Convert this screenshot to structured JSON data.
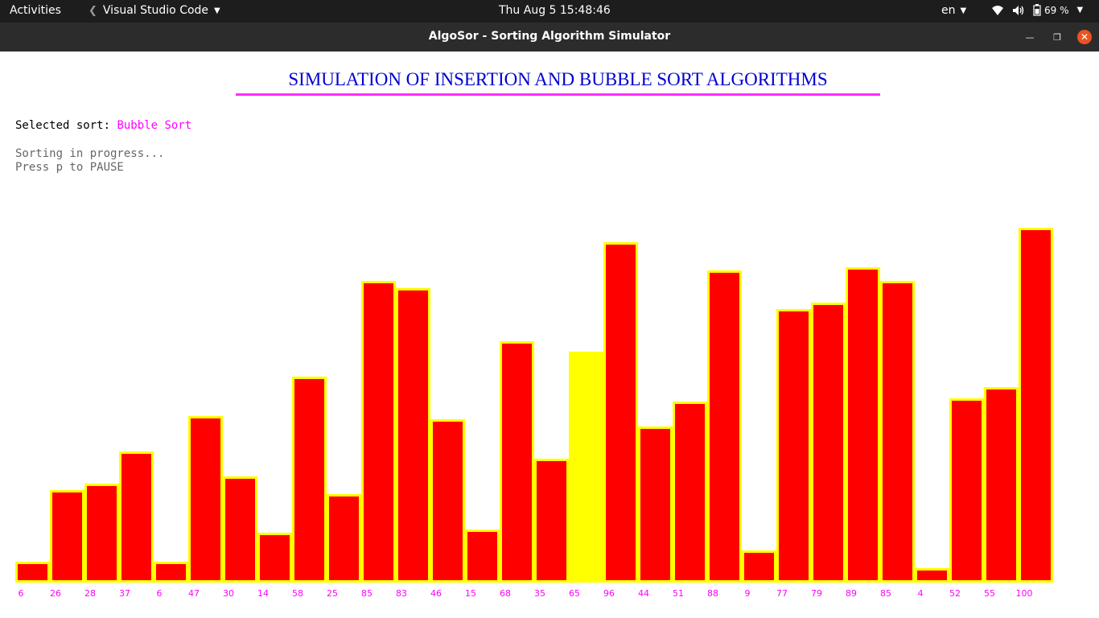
{
  "topbar": {
    "activities": "Activities",
    "app_name": "Visual Studio Code",
    "clock": "Thu Aug 5  15:48:46",
    "language": "en",
    "battery": "69 %"
  },
  "window": {
    "title": "AlgoSor - Sorting Algorithm Simulator"
  },
  "content": {
    "heading": "SIMULATION OF INSERTION AND BUBBLE SORT ALGORITHMS",
    "selected_label": "Selected sort: ",
    "selected_value": "Bubble Sort",
    "status_line1": "Sorting in progress...",
    "status_line2": "Press p to PAUSE"
  },
  "colors": {
    "bar_fill": "#ff0000",
    "bar_border": "#ffff00",
    "active_bar": "#ffff00",
    "value_label": "#ff00ff",
    "heading": "#0000d0",
    "heading_rule": "#ff2bff"
  },
  "array": {
    "values": [
      6,
      26,
      28,
      37,
      6,
      47,
      30,
      14,
      58,
      25,
      85,
      83,
      46,
      15,
      68,
      35,
      65,
      96,
      44,
      51,
      88,
      9,
      77,
      79,
      89,
      85,
      4,
      52,
      55,
      100
    ],
    "active_index": 16
  }
}
